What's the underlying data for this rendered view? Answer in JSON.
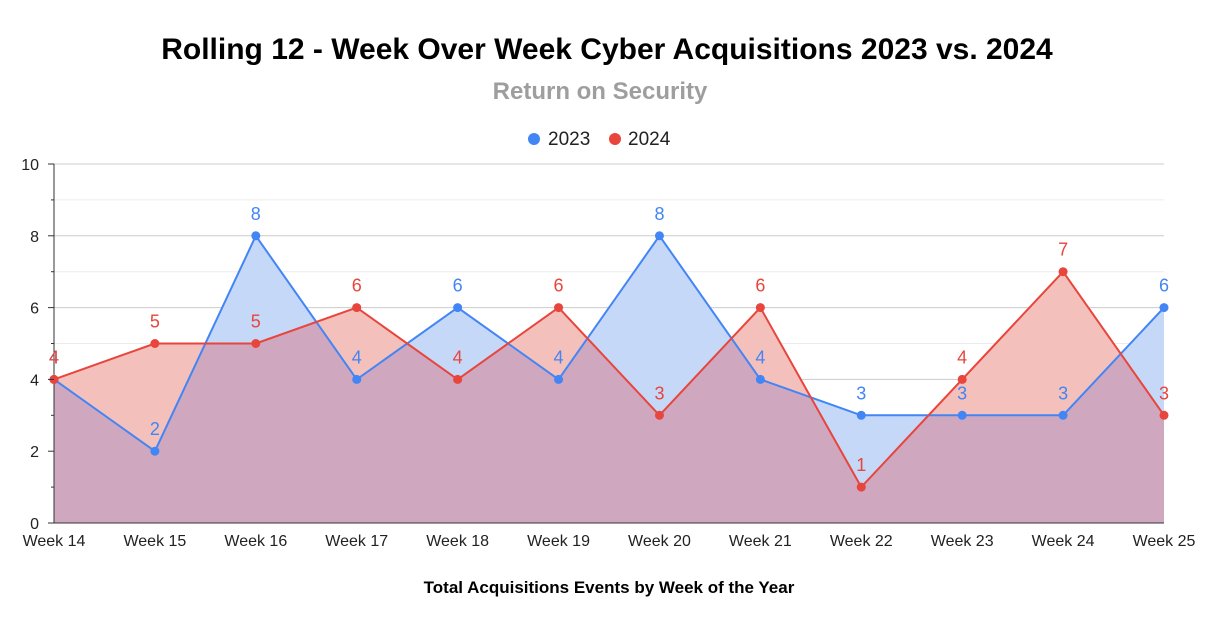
{
  "chart_data": {
    "type": "area",
    "title": "Rolling 12 - Week Over Week Cyber Acquisitions 2023 vs. 2024",
    "subtitle": "Return on Security",
    "xlabel": "Total Acquisitions Events by Week of the Year",
    "ylabel": "",
    "ylim": [
      0,
      10
    ],
    "yticks": [
      "0",
      "2",
      "4",
      "6",
      "8",
      "10"
    ],
    "grid": true,
    "legend_position": "top",
    "categories": [
      "Week 14",
      "Week 15",
      "Week 16",
      "Week 17",
      "Week 18",
      "Week 19",
      "Week 20",
      "Week 21",
      "Week 22",
      "Week 23",
      "Week 24",
      "Week 25"
    ],
    "series": [
      {
        "name": "2023",
        "color": "#4285f4",
        "fill": "#c5d8f7",
        "values": [
          4,
          2,
          8,
          4,
          6,
          4,
          8,
          4,
          3,
          3,
          3,
          6
        ]
      },
      {
        "name": "2024",
        "color": "#e8453c",
        "fill": "#f4c0bb",
        "values": [
          4,
          5,
          5,
          6,
          4,
          6,
          3,
          6,
          1,
          4,
          7,
          3
        ]
      }
    ],
    "overlap_fill": "#cfa8c0"
  }
}
